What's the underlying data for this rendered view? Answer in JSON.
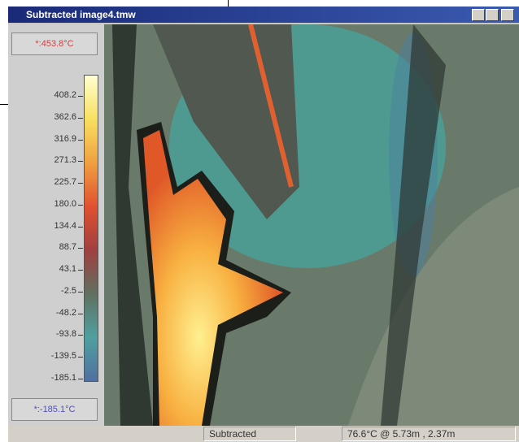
{
  "window": {
    "title": "Subtracted image4.tmw"
  },
  "scale": {
    "max_label": "*:453.8°C",
    "labels": [
      "408.2",
      "362.6",
      "316.9",
      "271.3",
      "225.7",
      "180.0",
      "134.4",
      "88.7",
      "43.1",
      "-2.5",
      "-48.2",
      "-93.8",
      "-139.5",
      "-185.1"
    ],
    "min_label": "*:-185.1°C"
  },
  "status": {
    "mode": "Subtracted",
    "reading": "76.6°C @ 5.73m , 2.37m"
  }
}
